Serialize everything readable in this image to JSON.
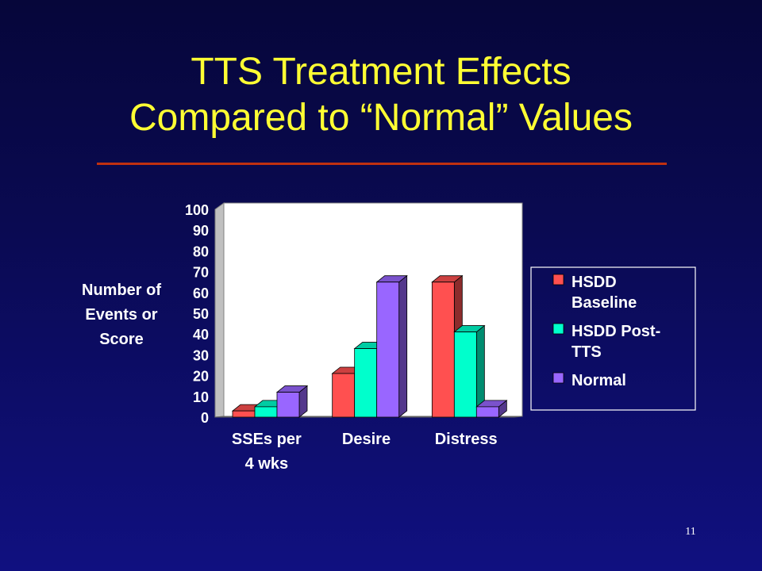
{
  "slide": {
    "title_line1": "TTS Treatment Effects",
    "title_line2": "Compared to “Normal” Values",
    "page_number": "11"
  },
  "chart_data": {
    "type": "bar",
    "categories": [
      [
        "SSEs per",
        "4 wks"
      ],
      [
        "Desire"
      ],
      [
        "Distress"
      ]
    ],
    "series": [
      {
        "name": [
          "HSDD",
          "Baseline"
        ],
        "values": [
          3,
          21,
          65
        ],
        "color": "#ff5050"
      },
      {
        "name": [
          "HSDD Post-",
          "TTS"
        ],
        "values": [
          5,
          33,
          41
        ],
        "color": "#00ffcc"
      },
      {
        "name": [
          "Normal"
        ],
        "values": [
          12,
          65,
          5
        ],
        "color": "#9966ff"
      }
    ],
    "ylabel": [
      "Number of",
      "Events or",
      "Score"
    ],
    "ylim": [
      0,
      100
    ],
    "yticks": [
      0,
      10,
      20,
      30,
      40,
      50,
      60,
      70,
      80,
      90,
      100
    ],
    "grid": false,
    "legend_position": "right",
    "colors": {
      "plot_background": "#ffffff",
      "axis_text": "#ffffff",
      "legend_text": "#ffffff"
    }
  }
}
